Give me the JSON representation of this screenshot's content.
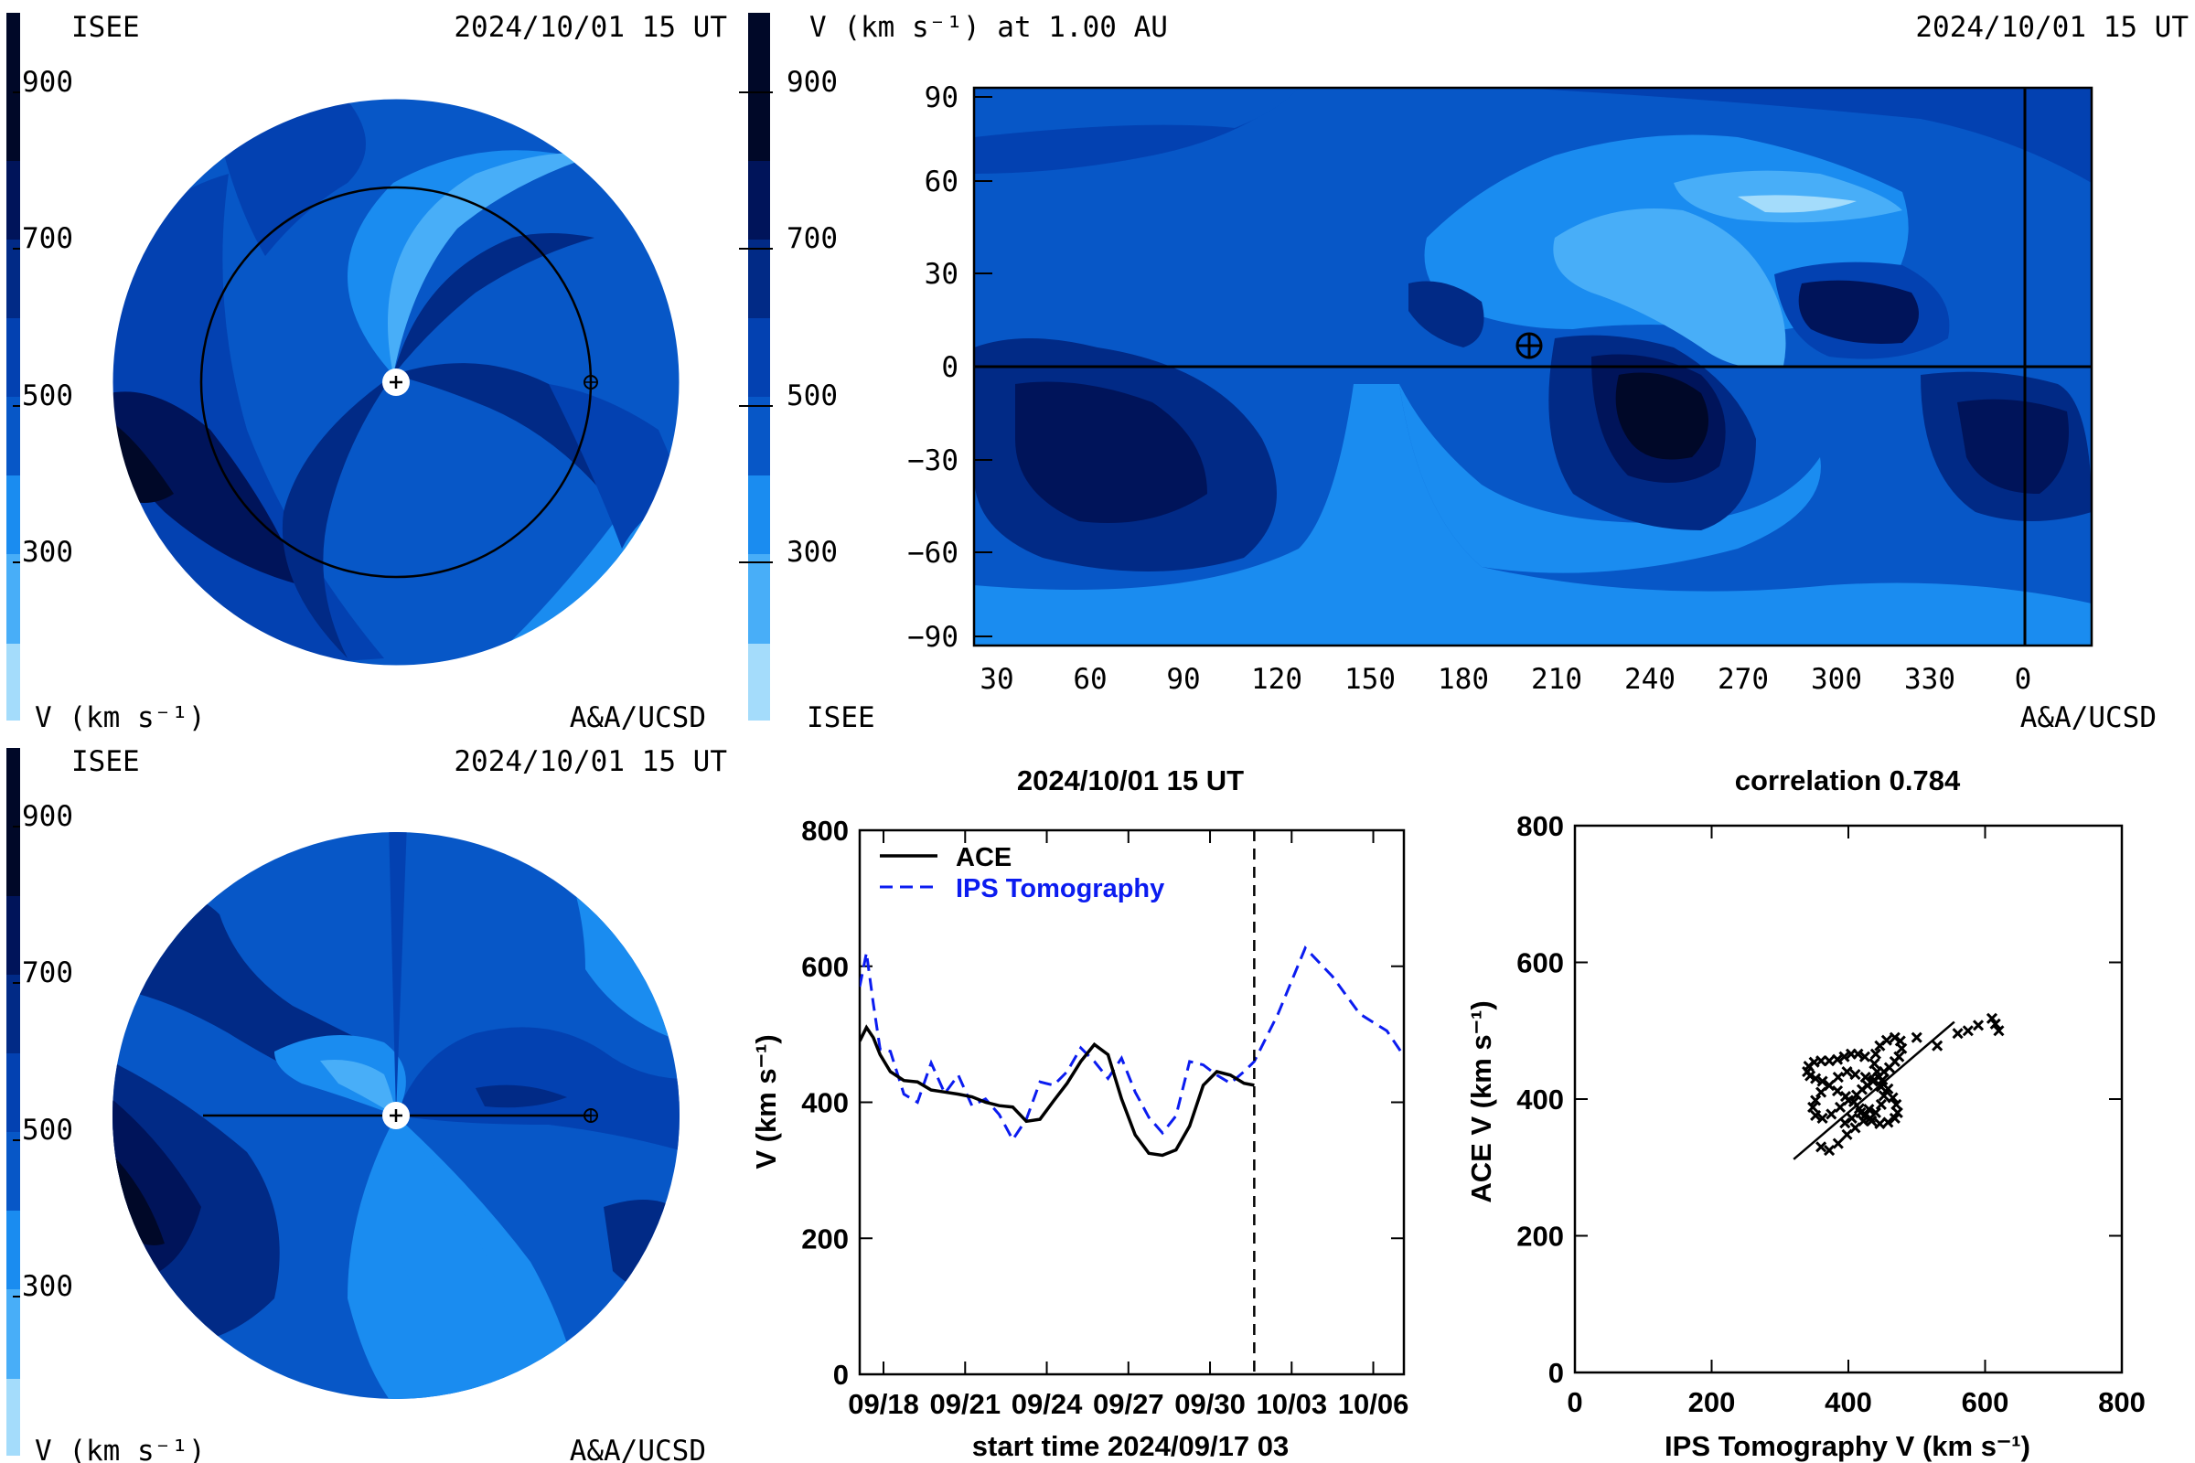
{
  "colors": {
    "c900": "#000828",
    "c800": "#00145a",
    "c700": "#012a86",
    "c600": "#0341b1",
    "c500": "#0757c7",
    "c400": "#0d6fd9",
    "c300": "#1a8cf0",
    "c200": "#48aef8",
    "c100": "#a4dcfb",
    "ace": "#000000",
    "ips": "#0b1cf0"
  },
  "panel_tl": {
    "label_left": "ISEE",
    "date": "2024/10/01 15 UT",
    "cbar_ticks": [
      "900",
      "700",
      "500",
      "300"
    ],
    "unit_label": "V (km s⁻¹)",
    "credit": "A&A/UCSD"
  },
  "panel_tr": {
    "title": "V (km s⁻¹) at 1.00 AU",
    "date": "2024/10/01 15 UT",
    "cbar_ticks": [
      "900",
      "700",
      "500",
      "300"
    ],
    "label_left": "ISEE",
    "credit": "A&A/UCSD",
    "y_ticks": [
      "90",
      "60",
      "30",
      "0",
      "−30",
      "−60",
      "−90"
    ],
    "x_ticks": [
      "30",
      "60",
      "90",
      "120",
      "150",
      "180",
      "210",
      "240",
      "270",
      "300",
      "330",
      "0"
    ]
  },
  "panel_bl": {
    "label_left": "ISEE",
    "date": "2024/10/01 15 UT",
    "cbar_ticks": [
      "900",
      "700",
      "500",
      "300"
    ],
    "unit_label": "V (km s⁻¹)",
    "credit": "A&A/UCSD"
  },
  "chart_data": [
    {
      "type": "line",
      "title": "2024/10/01 15 UT",
      "xlabel": "start time 2024/09/17 03",
      "ylabel": "V (km s⁻¹)",
      "ylim": [
        0,
        800
      ],
      "xlim": [
        "2024-09-17T03:00",
        "2024-10-07T03:00"
      ],
      "x_tick_labels": [
        "09/18",
        "09/21",
        "09/24",
        "09/27",
        "09/30",
        "10/03",
        "10/06"
      ],
      "y_tick_labels": [
        "0",
        "200",
        "400",
        "600",
        "800"
      ],
      "current_time": "2024-10-01T15:00",
      "legend_position": "top-left",
      "series": [
        {
          "name": "ACE",
          "x": [
            "2024-09-17T03:00",
            "2024-09-17T09:00",
            "2024-09-17T15:00",
            "2024-09-17T21:00",
            "2024-09-18T06:00",
            "2024-09-18T18:00",
            "2024-09-19T06:00",
            "2024-09-19T18:00",
            "2024-09-20T06:00",
            "2024-09-20T18:00",
            "2024-09-21T06:00",
            "2024-09-21T18:00",
            "2024-09-22T06:00",
            "2024-09-22T18:00",
            "2024-09-23T06:00",
            "2024-09-23T18:00",
            "2024-09-24T06:00",
            "2024-09-24T18:00",
            "2024-09-25T06:00",
            "2024-09-25T18:00",
            "2024-09-26T06:00",
            "2024-09-26T18:00",
            "2024-09-27T06:00",
            "2024-09-27T18:00",
            "2024-09-28T06:00",
            "2024-09-28T18:00",
            "2024-09-29T06:00",
            "2024-09-29T18:00",
            "2024-09-30T06:00",
            "2024-09-30T18:00",
            "2024-10-01T06:00",
            "2024-10-01T15:00"
          ],
          "values": [
            490,
            510,
            495,
            470,
            445,
            432,
            430,
            418,
            415,
            412,
            408,
            400,
            395,
            393,
            372,
            375,
            402,
            428,
            460,
            485,
            470,
            405,
            352,
            325,
            322,
            330,
            365,
            425,
            445,
            440,
            428,
            425
          ]
        },
        {
          "name": "IPS Tomography",
          "x": [
            "2024-09-17T03:00",
            "2024-09-17T09:00",
            "2024-09-17T15:00",
            "2024-09-17T21:00",
            "2024-09-18T06:00",
            "2024-09-18T18:00",
            "2024-09-19T06:00",
            "2024-09-19T18:00",
            "2024-09-20T06:00",
            "2024-09-20T18:00",
            "2024-09-21T06:00",
            "2024-09-21T18:00",
            "2024-09-22T06:00",
            "2024-09-22T18:00",
            "2024-09-23T06:00",
            "2024-09-23T18:00",
            "2024-09-24T06:00",
            "2024-09-24T18:00",
            "2024-09-25T06:00",
            "2024-09-25T18:00",
            "2024-09-26T06:00",
            "2024-09-26T18:00",
            "2024-09-27T06:00",
            "2024-09-27T18:00",
            "2024-09-28T06:00",
            "2024-09-28T18:00",
            "2024-09-29T06:00",
            "2024-09-29T18:00",
            "2024-09-30T06:00",
            "2024-09-30T18:00",
            "2024-10-01T06:00",
            "2024-10-01T15:00",
            "2024-10-02T12:00",
            "2024-10-03T12:00",
            "2024-10-04T12:00",
            "2024-10-05T12:00",
            "2024-10-06T12:00",
            "2024-10-07T03:00"
          ],
          "values": [
            570,
            620,
            545,
            478,
            475,
            412,
            400,
            458,
            413,
            440,
            395,
            405,
            382,
            345,
            375,
            430,
            425,
            445,
            480,
            460,
            435,
            465,
            415,
            378,
            355,
            380,
            460,
            455,
            440,
            428,
            445,
            460,
            530,
            627,
            585,
            530,
            505,
            468
          ]
        }
      ]
    },
    {
      "type": "scatter",
      "title": "correlation 0.784",
      "xlabel": "IPS Tomography V (km s⁻¹)",
      "ylabel": "ACE V (km s⁻¹)",
      "xlim": [
        0,
        800
      ],
      "ylim": [
        0,
        800
      ],
      "x_tick_labels": [
        "0",
        "200",
        "400",
        "600",
        "800"
      ],
      "y_tick_labels": [
        "0",
        "200",
        "400",
        "600",
        "800"
      ],
      "points": [
        [
          360,
          330
        ],
        [
          372,
          325
        ],
        [
          385,
          335
        ],
        [
          398,
          348
        ],
        [
          410,
          358
        ],
        [
          422,
          368
        ],
        [
          432,
          372
        ],
        [
          440,
          380
        ],
        [
          448,
          392
        ],
        [
          452,
          405
        ],
        [
          448,
          418
        ],
        [
          438,
          428
        ],
        [
          425,
          432
        ],
        [
          410,
          436
        ],
        [
          398,
          440
        ],
        [
          385,
          432
        ],
        [
          372,
          420
        ],
        [
          360,
          410
        ],
        [
          352,
          398
        ],
        [
          348,
          388
        ],
        [
          352,
          376
        ],
        [
          362,
          372
        ],
        [
          375,
          378
        ],
        [
          388,
          388
        ],
        [
          400,
          398
        ],
        [
          412,
          406
        ],
        [
          420,
          414
        ],
        [
          428,
          420
        ],
        [
          436,
          426
        ],
        [
          444,
          432
        ],
        [
          452,
          440
        ],
        [
          460,
          446
        ],
        [
          468,
          455
        ],
        [
          474,
          462
        ],
        [
          478,
          474
        ],
        [
          476,
          485
        ],
        [
          468,
          490
        ],
        [
          456,
          486
        ],
        [
          446,
          478
        ],
        [
          440,
          466
        ],
        [
          438,
          452
        ],
        [
          442,
          440
        ],
        [
          450,
          428
        ],
        [
          458,
          415
        ],
        [
          465,
          402
        ],
        [
          470,
          392
        ],
        [
          472,
          380
        ],
        [
          468,
          372
        ],
        [
          458,
          366
        ],
        [
          446,
          364
        ],
        [
          434,
          368
        ],
        [
          424,
          376
        ],
        [
          416,
          386
        ],
        [
          408,
          396
        ],
        [
          396,
          404
        ],
        [
          384,
          412
        ],
        [
          372,
          420
        ],
        [
          362,
          426
        ],
        [
          352,
          430
        ],
        [
          344,
          434
        ],
        [
          340,
          440
        ],
        [
          342,
          448
        ],
        [
          350,
          454
        ],
        [
          360,
          456
        ],
        [
          372,
          456
        ],
        [
          384,
          458
        ],
        [
          394,
          462
        ],
        [
          404,
          466
        ],
        [
          414,
          466
        ],
        [
          424,
          462
        ],
        [
          500,
          490
        ],
        [
          530,
          478
        ],
        [
          560,
          496
        ],
        [
          575,
          500
        ],
        [
          590,
          508
        ],
        [
          610,
          518
        ],
        [
          620,
          500
        ],
        [
          615,
          510
        ],
        [
          395,
          365
        ],
        [
          405,
          372
        ],
        [
          418,
          380
        ],
        [
          430,
          385
        ]
      ],
      "fit_line": {
        "x": [
          320,
          555
        ],
        "y": [
          312,
          513
        ]
      }
    }
  ]
}
